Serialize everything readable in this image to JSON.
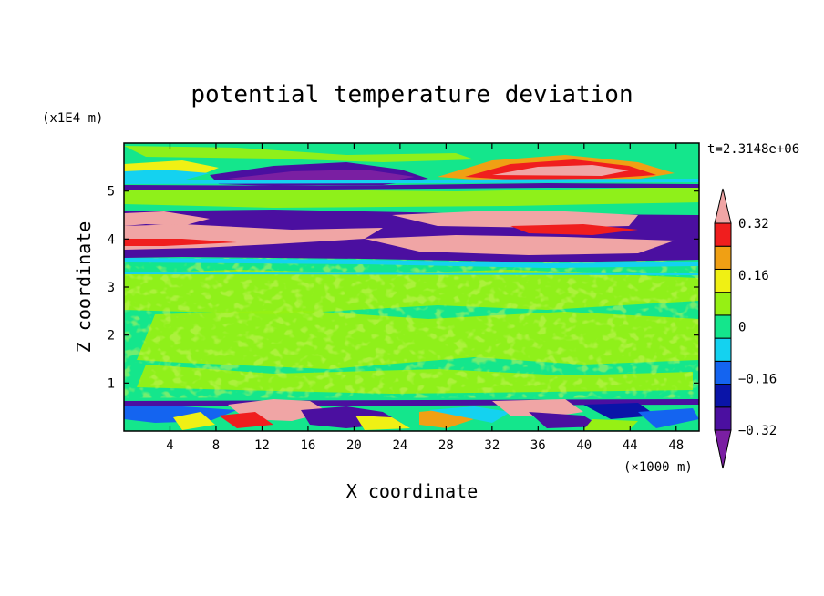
{
  "chart_data": {
    "type": "heatmap",
    "title": "potential temperature deviation",
    "xlabel": "X coordinate",
    "ylabel": "Z coordinate",
    "x_unit": "(×1000 m)",
    "y_unit": "(x1E4 m)",
    "time_label": "t=2.3148e+06",
    "xlim": [
      0,
      50
    ],
    "ylim": [
      0,
      6
    ],
    "x_ticks": [
      4,
      8,
      12,
      16,
      20,
      24,
      28,
      32,
      36,
      40,
      44,
      48
    ],
    "y_ticks": [
      1,
      2,
      3,
      4,
      5
    ],
    "colorbar": {
      "labels": [
        "0.32",
        "0.16",
        "0",
        "−0.16",
        "−0.32"
      ],
      "label_values": [
        0.32,
        0.16,
        0,
        -0.16,
        -0.32
      ],
      "levels": [
        -0.4,
        -0.32,
        -0.24,
        -0.16,
        -0.08,
        0,
        0.08,
        0.16,
        0.24,
        0.32,
        0.4
      ],
      "colors": [
        "#7a1fa2",
        "#4b0fa0",
        "#0a14a8",
        "#1464f0",
        "#14d2f0",
        "#14e68c",
        "#96f014",
        "#f0f014",
        "#f0a014",
        "#f01e1e",
        "#f0a5a5"
      ],
      "extend": "both"
    },
    "bands": [
      {
        "z_range": [
          0,
          0.7
        ],
        "description": "mixed turbulent layer: pink, red, yellow, blue and purple patches near the surface"
      },
      {
        "z_range": [
          0.7,
          3.6
        ],
        "description": "mostly near-zero deviation (green / yellow-green)"
      },
      {
        "z_range": [
          3.6,
          4.6
        ],
        "description": "strong alternating layers: purple and pink"
      },
      {
        "z_range": [
          4.6,
          5.2
        ],
        "description": "green with thin purple line near 5.1"
      },
      {
        "z_range": [
          5.2,
          6
        ],
        "description": "purple tongue left, pink/red/orange lens right"
      }
    ]
  }
}
